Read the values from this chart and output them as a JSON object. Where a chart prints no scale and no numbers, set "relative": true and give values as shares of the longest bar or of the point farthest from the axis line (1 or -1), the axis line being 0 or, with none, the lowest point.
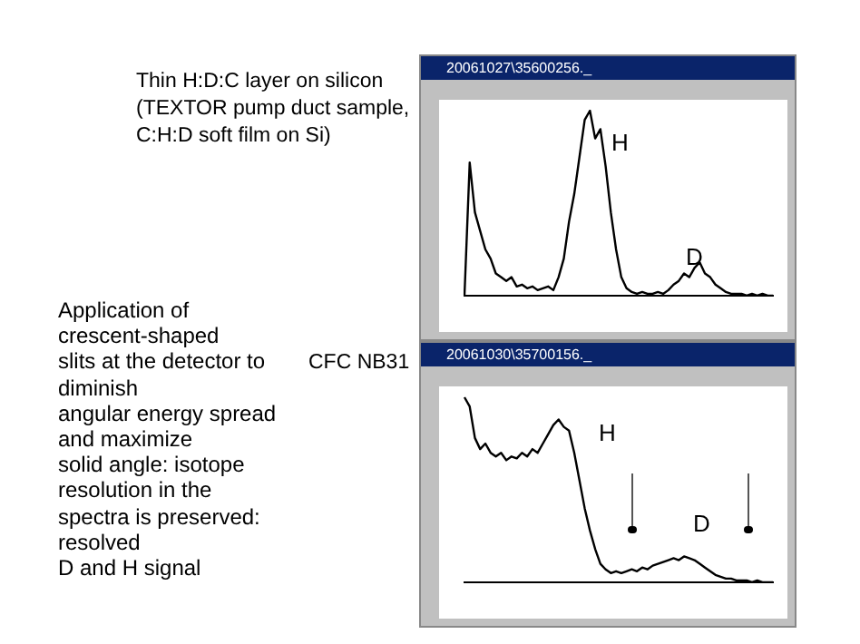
{
  "chart_data": [
    {
      "type": "line",
      "title": "Thin H:D:C layer on silicon (TEXTOR pump duct sample, C:H:D soft film on Si)",
      "subtitle": "20061027\\35600256._",
      "relative": true,
      "tick_labels": false,
      "grid": false,
      "legend": false,
      "marker": "none",
      "line_style": "solid",
      "annotations": [
        "H",
        "D"
      ],
      "categories": [
        null,
        null,
        null,
        null,
        null,
        null,
        null,
        null,
        null,
        null,
        null,
        null,
        null,
        null,
        null,
        null,
        null,
        null,
        null,
        null,
        null,
        null,
        null,
        null,
        null,
        null,
        null,
        null,
        null,
        null,
        null,
        null,
        null,
        null,
        null,
        null,
        null,
        null,
        null,
        null,
        null,
        null,
        null,
        null,
        null,
        null,
        null,
        null,
        null,
        null,
        null,
        null,
        null,
        null,
        null,
        null,
        null,
        null,
        null,
        null
      ],
      "series": [
        {
          "color": "#000000",
          "values": [
            0,
            0.72,
            0.45,
            0.35,
            0.25,
            0.2,
            0.12,
            0.1,
            0.08,
            0.1,
            0.05,
            0.06,
            0.04,
            0.05,
            0.03,
            0.04,
            0.05,
            0.03,
            0.1,
            0.2,
            0.4,
            0.55,
            0.75,
            0.95,
            1.0,
            0.85,
            0.9,
            0.7,
            0.45,
            0.25,
            0.1,
            0.04,
            0.02,
            0.01,
            0.02,
            0.01,
            0.01,
            0.02,
            0.01,
            0.03,
            0.06,
            0.08,
            0.12,
            0.1,
            0.15,
            0.18,
            0.12,
            0.1,
            0.06,
            0.04,
            0.02,
            0.01,
            0.01,
            0.01,
            0,
            0.01,
            0,
            0.01,
            0,
            0
          ]
        }
      ]
    },
    {
      "type": "line",
      "title": "CFC NB31",
      "subtitle": "20061030\\35700156._",
      "relative": true,
      "tick_labels": false,
      "grid": false,
      "legend": false,
      "marker": "none",
      "line_style": "solid",
      "annotations": [
        "H",
        "D",
        "Application of\ncrescent-shaped\nslits at the detector to\ndiminish\nangular energy spread\nand maximize\nsolid angle: isotope\nresolution in the\nspectra is preserved:\nresolved\nD and H signal"
      ],
      "categories": [
        null,
        null,
        null,
        null,
        null,
        null,
        null,
        null,
        null,
        null,
        null,
        null,
        null,
        null,
        null,
        null,
        null,
        null,
        null,
        null,
        null,
        null,
        null,
        null,
        null,
        null,
        null,
        null,
        null,
        null,
        null,
        null,
        null,
        null,
        null,
        null,
        null,
        null,
        null,
        null,
        null,
        null,
        null,
        null,
        null,
        null,
        null,
        null,
        null,
        null,
        null,
        null,
        null,
        null,
        null,
        null,
        null,
        null,
        null,
        null
      ],
      "series": [
        {
          "color": "#000000",
          "values": [
            1.0,
            0.95,
            0.78,
            0.72,
            0.75,
            0.7,
            0.68,
            0.7,
            0.66,
            0.68,
            0.67,
            0.7,
            0.68,
            0.72,
            0.7,
            0.75,
            0.8,
            0.85,
            0.88,
            0.84,
            0.82,
            0.7,
            0.55,
            0.4,
            0.28,
            0.18,
            0.1,
            0.07,
            0.05,
            0.06,
            0.05,
            0.06,
            0.07,
            0.06,
            0.08,
            0.07,
            0.09,
            0.1,
            0.11,
            0.12,
            0.13,
            0.12,
            0.14,
            0.13,
            0.12,
            0.1,
            0.08,
            0.06,
            0.04,
            0.03,
            0.02,
            0.02,
            0.01,
            0.01,
            0.01,
            0,
            0.01,
            0,
            0,
            0
          ]
        }
      ]
    }
  ]
}
